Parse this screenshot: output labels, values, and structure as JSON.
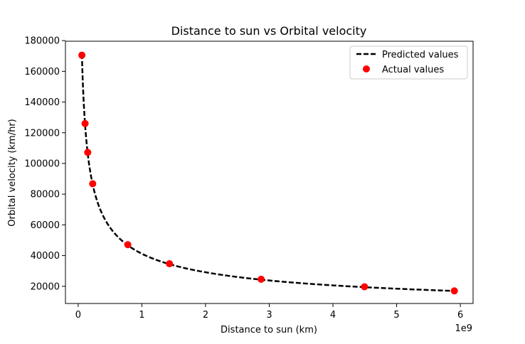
{
  "chart_data": {
    "type": "scatter",
    "title": "Distance to sun vs Orbital velocity",
    "xlabel": "Distance to sun (km)",
    "ylabel": "Orbital velocity (km/hr)",
    "x_offset_label": "1e9",
    "x_scale_factor": 1000000000,
    "xlim": [
      -0.2,
      6.2
    ],
    "ylim": [
      8800,
      179600
    ],
    "x_ticks": [
      0,
      1,
      2,
      3,
      4,
      5,
      6
    ],
    "y_ticks": [
      20000,
      40000,
      60000,
      80000,
      100000,
      120000,
      140000,
      160000,
      180000
    ],
    "grid": false,
    "legend_position": "top-right",
    "series": [
      {
        "name": "Predicted values",
        "kind": "line",
        "style": "dashed",
        "color": "#000000",
        "x_range": [
          0.0579,
          5.9
        ],
        "model": "y = 41200 / sqrt(x)"
      },
      {
        "name": "Actual values",
        "kind": "scatter",
        "color": "#ff0000",
        "x": [
          0.0579,
          0.108,
          0.1496,
          0.2279,
          0.7786,
          1.4335,
          2.8725,
          4.4951,
          5.9064
        ],
        "y": [
          170500,
          126000,
          107200,
          86800,
          47100,
          34700,
          24600,
          19700,
          17000
        ]
      }
    ]
  }
}
